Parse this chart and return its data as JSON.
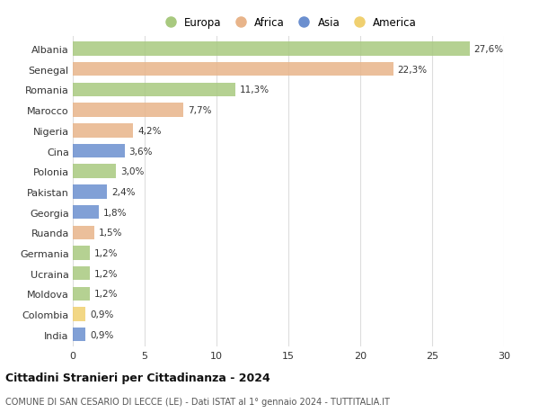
{
  "countries": [
    "Albania",
    "Senegal",
    "Romania",
    "Marocco",
    "Nigeria",
    "Cina",
    "Polonia",
    "Pakistan",
    "Georgia",
    "Ruanda",
    "Germania",
    "Ucraina",
    "Moldova",
    "Colombia",
    "India"
  ],
  "values": [
    27.6,
    22.3,
    11.3,
    7.7,
    4.2,
    3.6,
    3.0,
    2.4,
    1.8,
    1.5,
    1.2,
    1.2,
    1.2,
    0.9,
    0.9
  ],
  "labels": [
    "27,6%",
    "22,3%",
    "11,3%",
    "7,7%",
    "4,2%",
    "3,6%",
    "3,0%",
    "2,4%",
    "1,8%",
    "1,5%",
    "1,2%",
    "1,2%",
    "1,2%",
    "0,9%",
    "0,9%"
  ],
  "colors": [
    "#a8c97f",
    "#e8b48a",
    "#a8c97f",
    "#e8b48a",
    "#e8b48a",
    "#6b8fcf",
    "#a8c97f",
    "#6b8fcf",
    "#6b8fcf",
    "#e8b48a",
    "#a8c97f",
    "#a8c97f",
    "#a8c97f",
    "#f0d070",
    "#6b8fcf"
  ],
  "legend_labels": [
    "Europa",
    "Africa",
    "Asia",
    "America"
  ],
  "legend_colors": [
    "#a8c97f",
    "#e8b48a",
    "#6b8fcf",
    "#f0d070"
  ],
  "title": "Cittadini Stranieri per Cittadinanza - 2024",
  "subtitle": "COMUNE DI SAN CESARIO DI LECCE (LE) - Dati ISTAT al 1° gennaio 2024 - TUTTITALIA.IT",
  "xlim": [
    0,
    30
  ],
  "xticks": [
    0,
    5,
    10,
    15,
    20,
    25,
    30
  ],
  "bg_color": "#ffffff",
  "grid_color": "#dddddd",
  "bar_height": 0.68,
  "label_fontsize": 7.5,
  "ytick_fontsize": 8.0,
  "xtick_fontsize": 8.0,
  "legend_fontsize": 8.5,
  "title_fontsize": 9.0,
  "subtitle_fontsize": 7.0
}
